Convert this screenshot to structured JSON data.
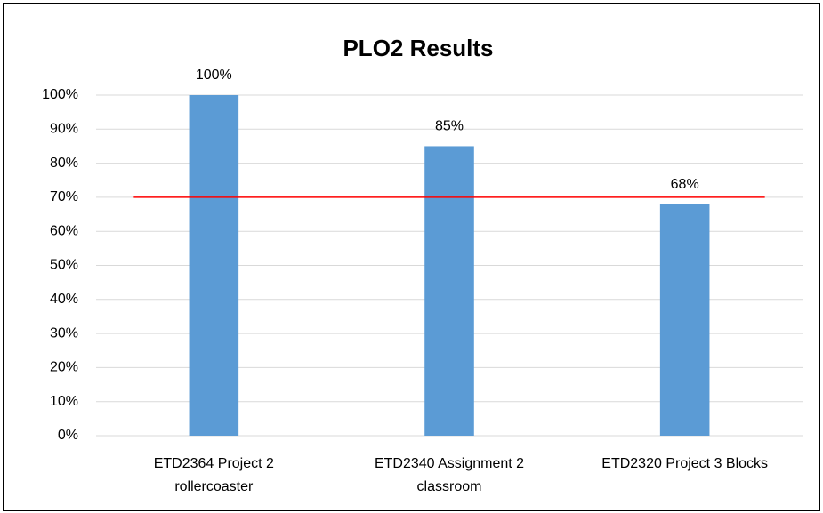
{
  "chart_data": {
    "type": "bar",
    "title": "PLO2 Results",
    "categories": [
      [
        "ETD2364 Project 2",
        "rollercoaster"
      ],
      [
        "ETD2340 Assignment 2",
        "classroom"
      ],
      [
        "ETD2320 Project 3 Blocks"
      ]
    ],
    "values": [
      100,
      85,
      68
    ],
    "value_labels": [
      "100%",
      "85%",
      "68%"
    ],
    "color": "#5b9bd5",
    "ylim": [
      0,
      100
    ],
    "yticks": [
      {
        "value": 0,
        "label": "0%"
      },
      {
        "value": 10,
        "label": "10%"
      },
      {
        "value": 20,
        "label": "20%"
      },
      {
        "value": 30,
        "label": "30%"
      },
      {
        "value": 40,
        "label": "40%"
      },
      {
        "value": 50,
        "label": "50%"
      },
      {
        "value": 60,
        "label": "60%"
      },
      {
        "value": 70,
        "label": "70%"
      },
      {
        "value": 80,
        "label": "80%"
      },
      {
        "value": 90,
        "label": "90%"
      },
      {
        "value": 100,
        "label": "100%"
      }
    ],
    "grid": true,
    "reference_line": {
      "value": 70,
      "color": "#ff0000"
    }
  }
}
